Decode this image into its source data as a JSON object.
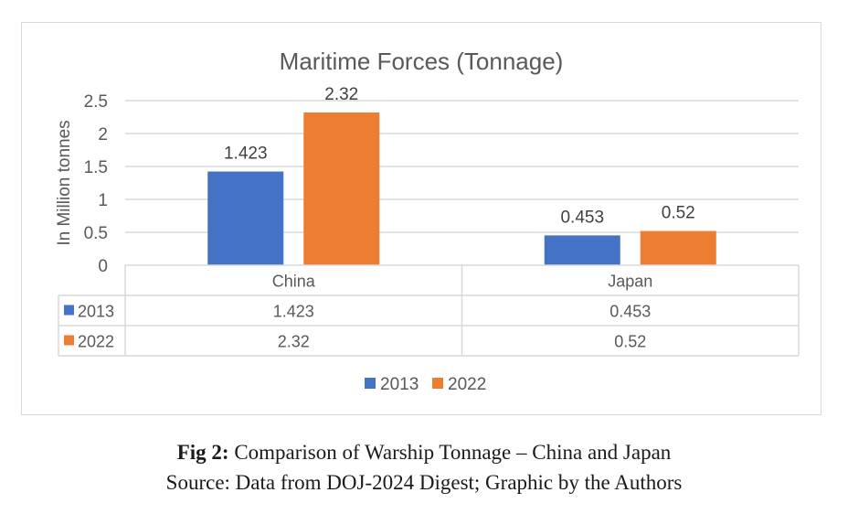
{
  "chart_data": {
    "type": "bar",
    "title": "Maritime Forces (Tonnage)",
    "xlabel": "",
    "ylabel": "In Million tonnes",
    "categories": [
      "China",
      "Japan"
    ],
    "series": [
      {
        "name": "2013",
        "values": [
          1.423,
          0.453
        ],
        "labels": [
          "1.423",
          "0.453"
        ],
        "color": "#4472c4"
      },
      {
        "name": "2022",
        "values": [
          2.32,
          0.52
        ],
        "labels": [
          "2.32",
          "0.52"
        ],
        "color": "#ed7d31"
      }
    ],
    "ylim": [
      0,
      2.5
    ],
    "yticks": [
      0,
      0.5,
      1,
      1.5,
      2,
      2.5
    ],
    "ytick_labels": [
      "0",
      "0.5",
      "1",
      "1.5",
      "2",
      "2.5"
    ],
    "grid": true,
    "legend": {
      "position": "bottom",
      "entries": [
        "2013",
        "2022"
      ]
    },
    "data_table": {
      "columns": [
        "China",
        "Japan"
      ],
      "rows": [
        {
          "label": "2013",
          "values": [
            "1.423",
            "0.453"
          ]
        },
        {
          "label": "2022",
          "values": [
            "2.32",
            "0.52"
          ]
        }
      ]
    }
  },
  "colors": {
    "grid": "#d9d9d9",
    "text": "#595959",
    "title": "#595959"
  },
  "caption": {
    "label": "Fig 2:",
    "text": " Comparison of Warship Tonnage – China and Japan",
    "source": "Source: Data from DOJ-2024 Digest; Graphic by the Authors"
  }
}
